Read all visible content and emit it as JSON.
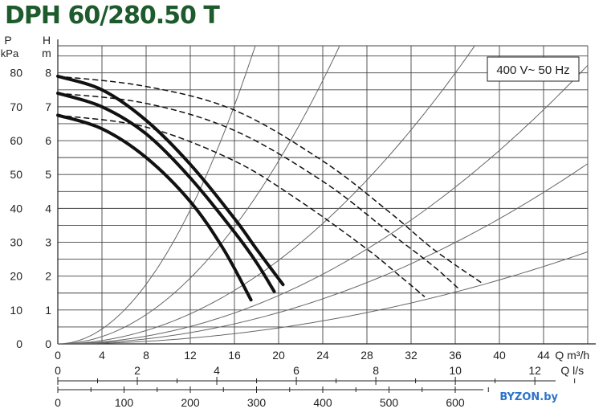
{
  "title": "DPH 60/280.50 T",
  "watermark": "BYZON.by",
  "chart_data": {
    "type": "line",
    "title": "DPH 60/280.50 T",
    "annotation": "400 V~ 50 Hz",
    "grid": true,
    "x_axis": {
      "label_prefix": "Q",
      "label_unit": "m³/h",
      "range": [
        0,
        48
      ],
      "ticks": [
        "0",
        "4",
        "8",
        "12",
        "16",
        "20",
        "24",
        "28",
        "32",
        "36",
        "40",
        "44"
      ]
    },
    "x_axis_ls": {
      "label_prefix": "Q",
      "label_unit": "l/s",
      "range": [
        0,
        13.33
      ],
      "ticks": [
        "0",
        "2",
        "4",
        "6",
        "8",
        "10",
        "12"
      ]
    },
    "x_axis_third": {
      "range": [
        0,
        800
      ],
      "ticks": [
        "0",
        "100",
        "200",
        "300",
        "400",
        "500",
        "600"
      ]
    },
    "y_axis_h": {
      "label": "H",
      "unit": "m",
      "range": [
        0,
        8.8
      ],
      "ticks": [
        "0",
        "1",
        "2",
        "3",
        "4",
        "5",
        "6",
        "7",
        "8"
      ]
    },
    "y_axis_p": {
      "label": "P",
      "unit": "kPa",
      "range": [
        0,
        88
      ],
      "ticks": [
        "0",
        "10",
        "20",
        "30",
        "40",
        "50",
        "60",
        "70",
        "80"
      ]
    },
    "series": [
      {
        "style": "solid",
        "x": [
          0,
          4,
          8,
          12,
          16,
          18,
          20.4
        ],
        "y": [
          7.9,
          7.5,
          6.6,
          5.3,
          3.7,
          2.8,
          1.75
        ]
      },
      {
        "style": "solid",
        "x": [
          0,
          4,
          8,
          12,
          16,
          18,
          19.6
        ],
        "y": [
          7.4,
          7.0,
          6.2,
          4.9,
          3.3,
          2.4,
          1.55
        ]
      },
      {
        "style": "solid",
        "x": [
          0,
          4,
          8,
          12,
          15,
          17.5
        ],
        "y": [
          6.75,
          6.35,
          5.5,
          4.2,
          2.8,
          1.3
        ]
      },
      {
        "style": "dashed",
        "x": [
          0,
          8,
          16,
          24,
          30,
          34,
          38.4
        ],
        "y": [
          7.9,
          7.6,
          6.9,
          5.4,
          3.9,
          2.8,
          1.8
        ]
      },
      {
        "style": "dashed",
        "x": [
          0,
          8,
          16,
          24,
          30,
          34,
          36.4
        ],
        "y": [
          7.4,
          7.1,
          6.3,
          4.8,
          3.3,
          2.3,
          1.6
        ]
      },
      {
        "style": "dashed",
        "x": [
          0,
          8,
          16,
          22,
          28,
          31,
          33.2
        ],
        "y": [
          6.75,
          6.4,
          5.4,
          4.2,
          2.8,
          2.0,
          1.4
        ]
      }
    ],
    "system_curves": [
      {
        "k": 0.0275
      },
      {
        "k": 0.0135
      },
      {
        "k": 0.00617
      },
      {
        "k": 0.00357
      },
      {
        "k": 0.00231
      },
      {
        "k": 0.00118
      }
    ]
  }
}
